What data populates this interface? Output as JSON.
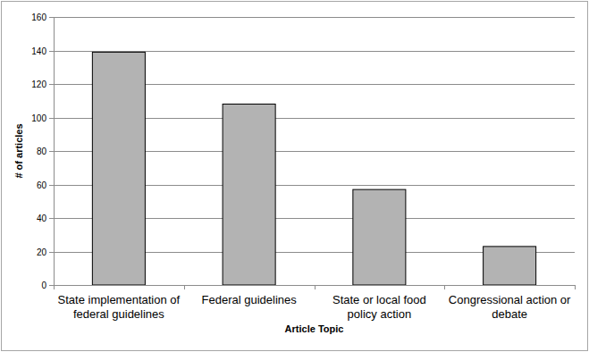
{
  "chart_data": {
    "type": "bar",
    "x_label": "Article Topic",
    "y_label": "# of articles",
    "categories": [
      "State implementation of federal guidelines",
      "Federal guidelines",
      "State or local food policy action",
      "Congressional action or debate"
    ],
    "values": [
      139,
      108,
      57,
      23
    ],
    "color": "#b3b3b3",
    "ylim": [
      0,
      160
    ],
    "yticks": [
      0,
      20,
      40,
      60,
      80,
      100,
      120,
      140,
      160
    ],
    "grid": true
  }
}
